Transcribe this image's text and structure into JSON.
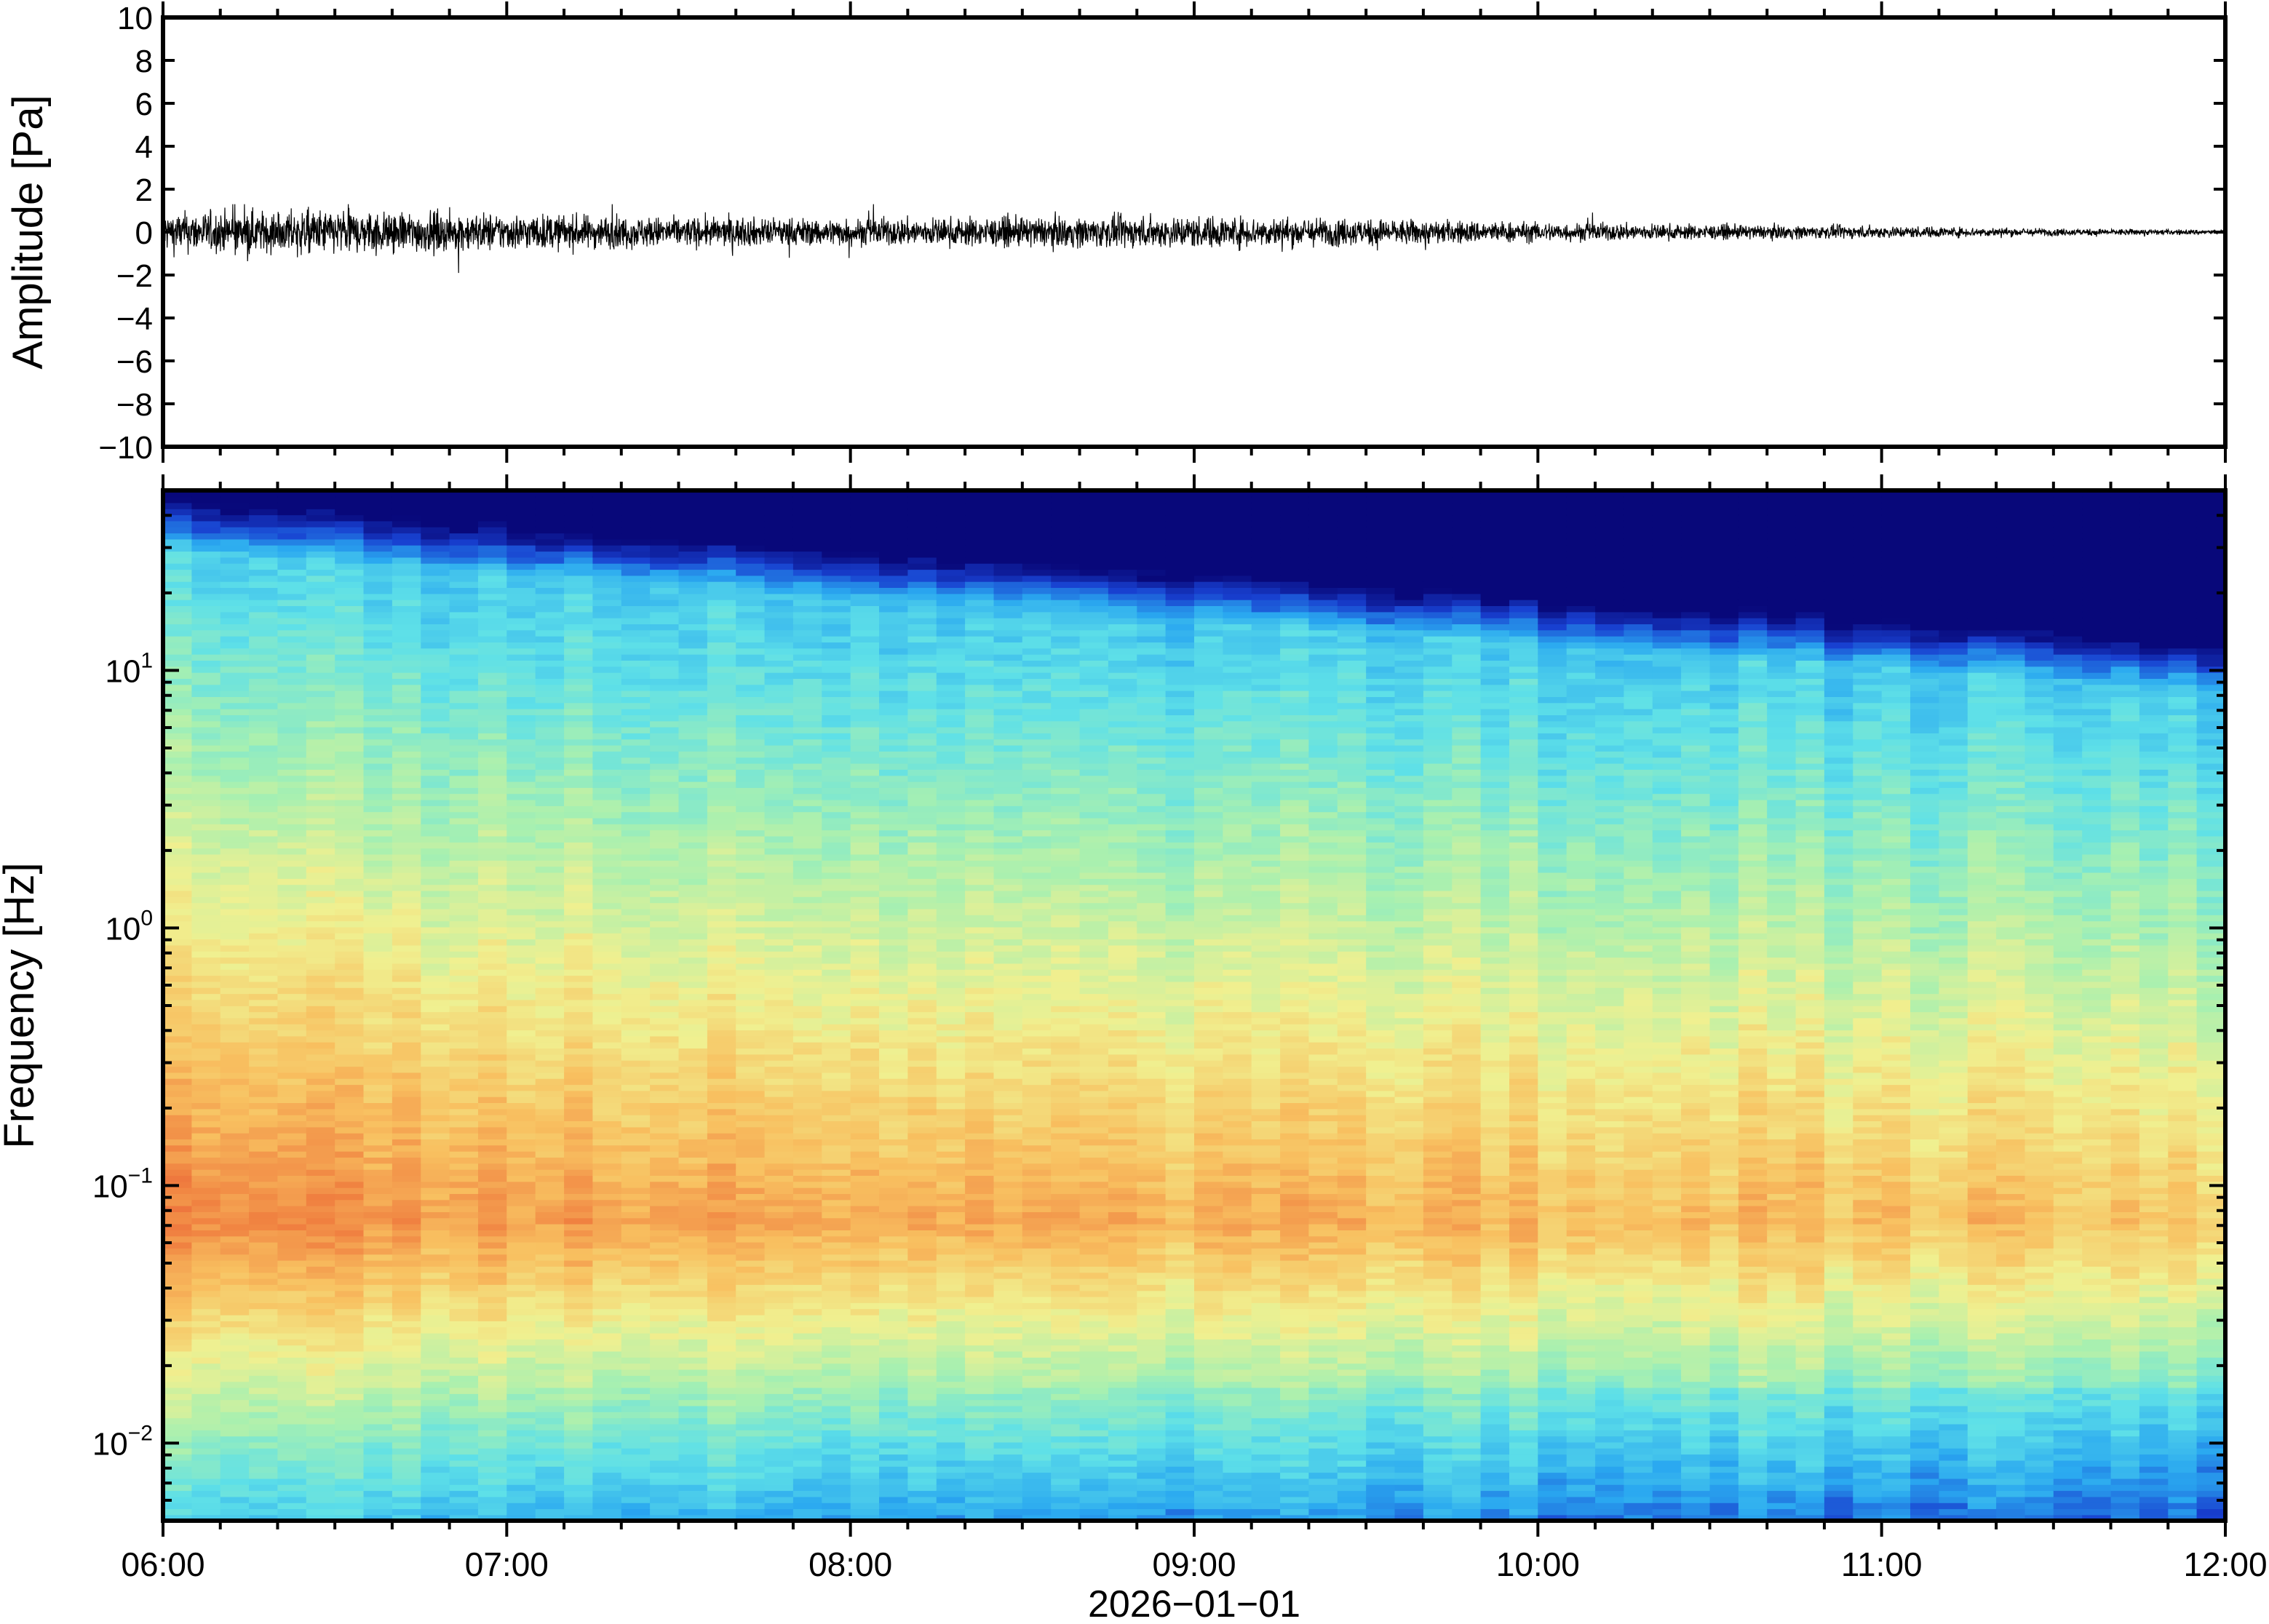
{
  "chart_data": [
    {
      "type": "line",
      "title": "",
      "xlabel": "",
      "ylabel": "Amplitude [Pa]",
      "ylim": [
        -10,
        10
      ],
      "yticks": [
        "10",
        "8",
        "6",
        "4",
        "2",
        "0",
        "−2",
        "−4",
        "−6",
        "−8",
        "−10"
      ],
      "ytick_values": [
        10,
        8,
        6,
        4,
        2,
        0,
        -2,
        -4,
        -6,
        -8,
        -10
      ],
      "xlim_hours": [
        6,
        12
      ],
      "grid": false,
      "series": [
        {
          "color": "#000000",
          "envelope_hours": [
            6.0,
            6.5,
            7.0,
            7.5,
            8.0,
            8.5,
            9.0,
            9.5,
            10.0,
            10.5,
            11.0,
            11.5,
            12.0
          ],
          "envelope_amplitude": [
            0.8,
            0.9,
            0.75,
            0.6,
            0.55,
            0.6,
            0.65,
            0.55,
            0.4,
            0.3,
            0.25,
            0.15,
            0.1
          ],
          "peak_min": -1.9,
          "peak_max": 1.3
        }
      ]
    },
    {
      "type": "heatmap",
      "title": "",
      "ylabel": "Frequency [Hz]",
      "xlabel": "2026−01−01",
      "yscale": "log",
      "ylim": [
        0.005,
        50
      ],
      "ytick_values": [
        0.01,
        0.1,
        1,
        10
      ],
      "yticks": [
        {
          "base": "10",
          "exp": "−2"
        },
        {
          "base": "10",
          "exp": "−1"
        },
        {
          "base": "10",
          "exp": "0"
        },
        {
          "base": "10",
          "exp": "1"
        }
      ],
      "xticks": [
        "06:00",
        "07:00",
        "08:00",
        "09:00",
        "10:00",
        "11:00",
        "12:00"
      ],
      "xtick_hours": [
        6,
        7,
        8,
        9,
        10,
        11,
        12
      ],
      "colormap": "jet",
      "colormap_stops": [
        "#08087a",
        "#1840d0",
        "#2aa8f0",
        "#5ee0e8",
        "#a8f0b0",
        "#f0f090",
        "#f8c060",
        "#f08040",
        "#e03030"
      ],
      "grid": false
    }
  ],
  "axis_color": "#000000"
}
